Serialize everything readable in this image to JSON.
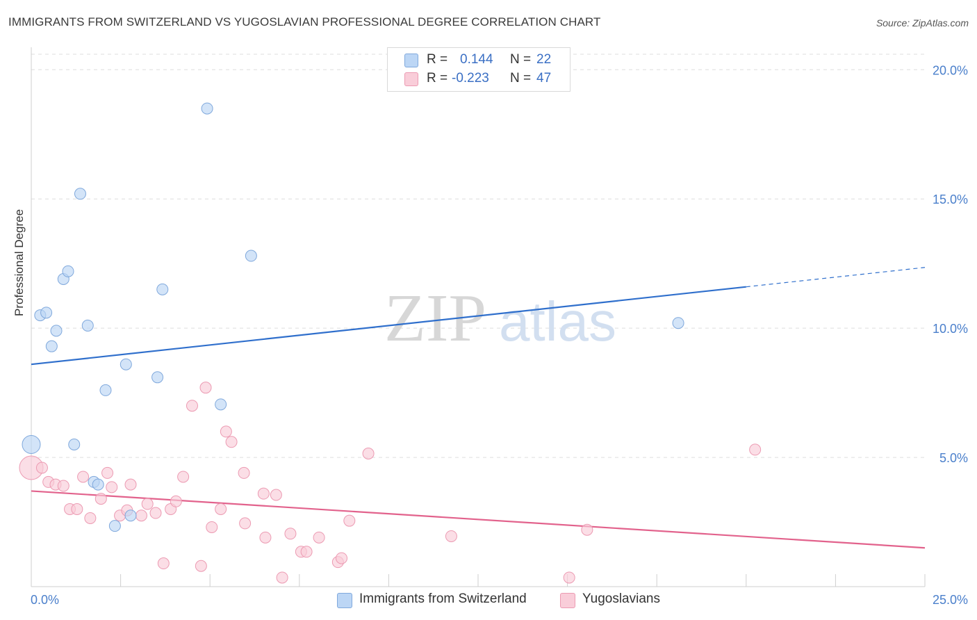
{
  "header": {
    "title": "IMMIGRANTS FROM SWITZERLAND VS YUGOSLAVIAN PROFESSIONAL DEGREE CORRELATION CHART",
    "source": "Source: ZipAtlas.com"
  },
  "watermark": {
    "zip": "ZIP",
    "atlas": "atlas"
  },
  "legend_top": {
    "rows": [
      {
        "r_label": "R =",
        "r_value": "0.144",
        "n_label": "N =",
        "n_value": "22",
        "color": "#a8c8f0"
      },
      {
        "r_label": "R =",
        "r_value": "-0.223",
        "n_label": "N =",
        "n_value": "47",
        "color": "#f6b8cb"
      }
    ]
  },
  "bottom_legend": {
    "items": [
      {
        "label": "Immigrants from Switzerland",
        "color": "#a8c8f0"
      },
      {
        "label": "Yugoslavians",
        "color": "#f6b8cb"
      }
    ]
  },
  "chart_data": {
    "type": "scatter",
    "title": "IMMIGRANTS FROM SWITZERLAND VS YUGOSLAVIAN PROFESSIONAL DEGREE CORRELATION CHART",
    "xlabel": "",
    "ylabel": "Professional Degree",
    "xlim": [
      0,
      25
    ],
    "ylim": [
      0,
      20.6
    ],
    "x_tick_labels": [
      {
        "value": 0,
        "label": "0.0%"
      },
      {
        "value": 25,
        "label": "25.0%"
      }
    ],
    "y_tick_labels": [
      {
        "value": 5,
        "label": "5.0%"
      },
      {
        "value": 10,
        "label": "10.0%"
      },
      {
        "value": 15,
        "label": "15.0%"
      },
      {
        "value": 20,
        "label": "20.0%"
      }
    ],
    "grid": true,
    "colors": {
      "blue_fill": "#bcd6f5",
      "blue_stroke": "#7fa8dc",
      "blue_line": "#2f6fcc",
      "pink_fill": "#f9cdd9",
      "pink_stroke": "#ec9ab2",
      "pink_line": "#e2628c",
      "tick_label": "#4a7fcb",
      "grid": "#dedede"
    },
    "series": [
      {
        "name": "Immigrants from Switzerland",
        "color": "blue",
        "points": [
          [
            0.0,
            5.5,
            2
          ],
          [
            0.25,
            10.5,
            1
          ],
          [
            0.42,
            10.6,
            1
          ],
          [
            0.57,
            9.3,
            1
          ],
          [
            0.7,
            9.9,
            1
          ],
          [
            0.9,
            11.9,
            1
          ],
          [
            1.03,
            12.2,
            1
          ],
          [
            1.2,
            5.5,
            1
          ],
          [
            1.37,
            15.2,
            1
          ],
          [
            1.58,
            10.1,
            1
          ],
          [
            1.75,
            4.05,
            1
          ],
          [
            1.87,
            3.95,
            1
          ],
          [
            2.08,
            7.6,
            1
          ],
          [
            2.34,
            2.35,
            1
          ],
          [
            2.65,
            8.6,
            1
          ],
          [
            2.78,
            2.75,
            1
          ],
          [
            3.53,
            8.1,
            1
          ],
          [
            3.67,
            11.5,
            1
          ],
          [
            4.92,
            18.5,
            1
          ],
          [
            5.3,
            7.05,
            1
          ],
          [
            6.15,
            12.8,
            1
          ],
          [
            18.1,
            10.2,
            1
          ]
        ],
        "trend": {
          "x1": 0,
          "y1": 8.6,
          "x2": 20.0,
          "y2": 11.6,
          "dash_to_x": 25,
          "dash_to_y": 12.35
        }
      },
      {
        "name": "Yugoslavians",
        "color": "pink",
        "points": [
          [
            0.0,
            4.6,
            3
          ],
          [
            0.3,
            4.6,
            1
          ],
          [
            0.48,
            4.05,
            1
          ],
          [
            0.68,
            3.95,
            1
          ],
          [
            0.9,
            3.9,
            1
          ],
          [
            1.08,
            3.0,
            1
          ],
          [
            1.28,
            3.0,
            1
          ],
          [
            1.45,
            4.25,
            1
          ],
          [
            1.65,
            2.65,
            1
          ],
          [
            1.95,
            3.4,
            1
          ],
          [
            2.13,
            4.4,
            1
          ],
          [
            2.25,
            3.85,
            1
          ],
          [
            2.48,
            2.75,
            1
          ],
          [
            2.68,
            2.95,
            1
          ],
          [
            2.78,
            3.95,
            1
          ],
          [
            3.08,
            2.75,
            1
          ],
          [
            3.25,
            3.2,
            1
          ],
          [
            3.48,
            2.85,
            1
          ],
          [
            3.7,
            0.9,
            1
          ],
          [
            3.9,
            3.0,
            1
          ],
          [
            4.05,
            3.3,
            1
          ],
          [
            4.25,
            4.25,
            1
          ],
          [
            4.5,
            7.0,
            1
          ],
          [
            4.75,
            0.8,
            1
          ],
          [
            4.88,
            7.7,
            1
          ],
          [
            5.05,
            2.3,
            1
          ],
          [
            5.3,
            3.0,
            1
          ],
          [
            5.45,
            6.0,
            1
          ],
          [
            5.6,
            5.6,
            1
          ],
          [
            5.95,
            4.4,
            1
          ],
          [
            5.98,
            2.45,
            1
          ],
          [
            6.5,
            3.6,
            1
          ],
          [
            6.55,
            1.9,
            1
          ],
          [
            6.85,
            3.55,
            1
          ],
          [
            7.02,
            0.35,
            1
          ],
          [
            7.25,
            2.05,
            1
          ],
          [
            7.55,
            1.35,
            1
          ],
          [
            7.7,
            1.35,
            1
          ],
          [
            8.05,
            1.9,
            1
          ],
          [
            8.58,
            0.95,
            1
          ],
          [
            8.68,
            1.1,
            1
          ],
          [
            8.9,
            2.55,
            1
          ],
          [
            9.43,
            5.15,
            1
          ],
          [
            11.75,
            1.95,
            1
          ],
          [
            15.05,
            0.35,
            1
          ],
          [
            15.55,
            2.2,
            1
          ],
          [
            20.25,
            5.3,
            1
          ]
        ],
        "trend": {
          "x1": 0,
          "y1": 3.7,
          "x2": 25,
          "y2": 1.5
        }
      }
    ]
  }
}
